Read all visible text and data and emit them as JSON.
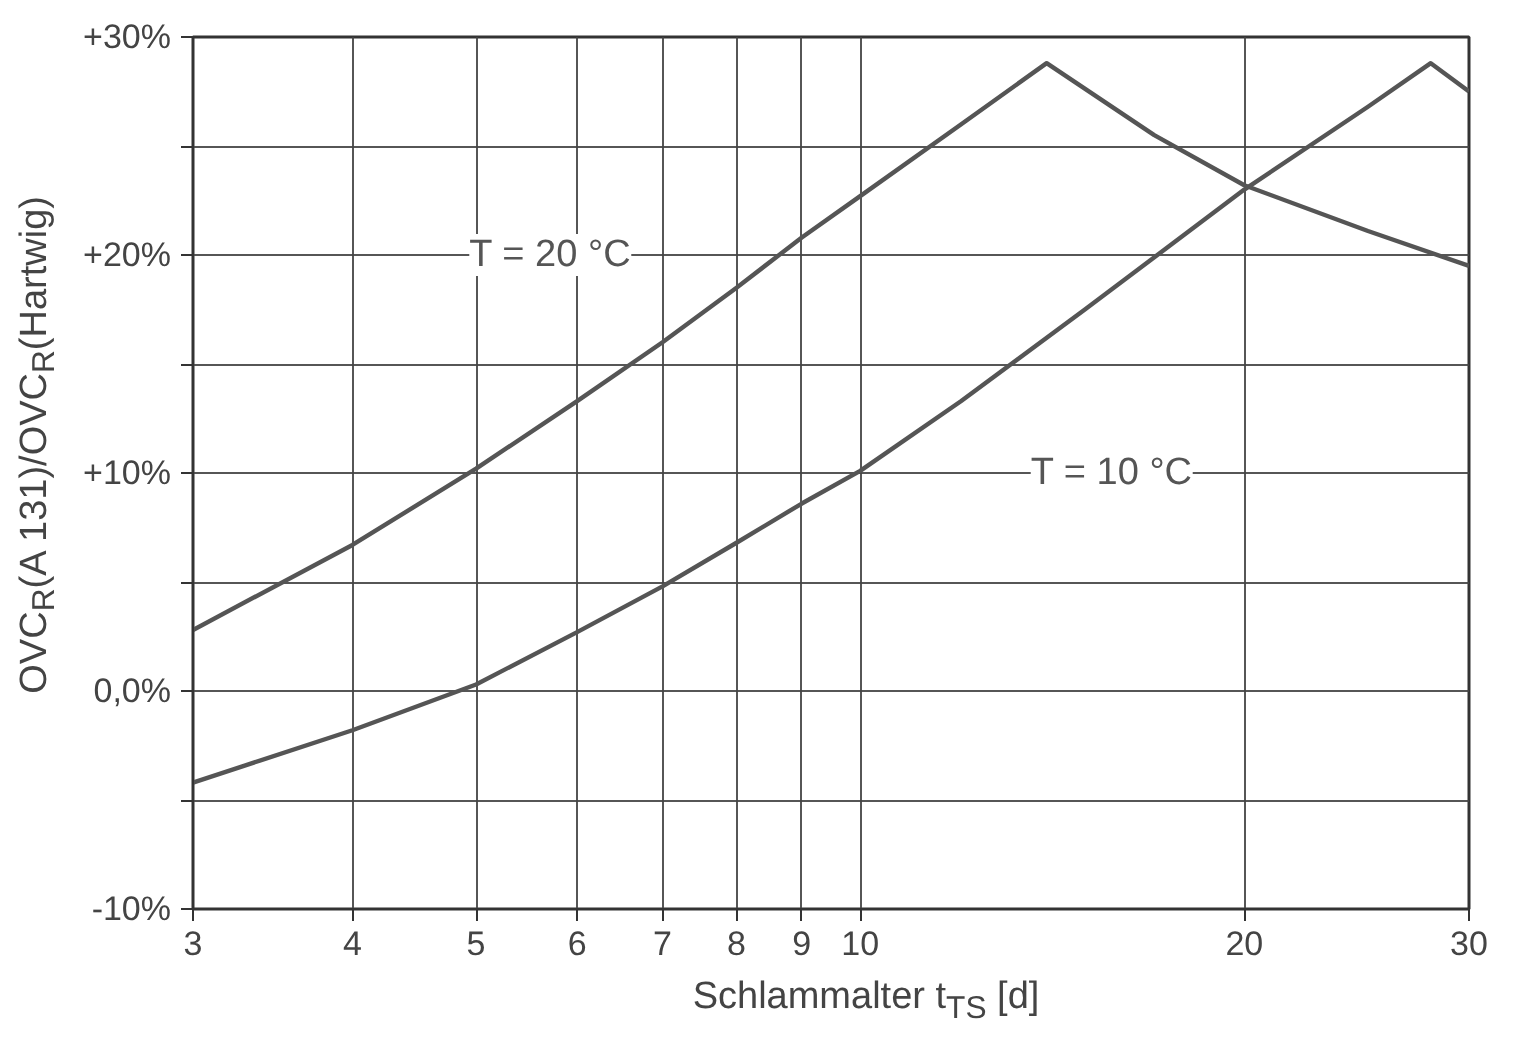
{
  "chart_data": {
    "type": "line",
    "xlabel": "Schlammalter t$_{TS}$ [d]",
    "ylabel": "OVC$_{R}$(A 131)/OVC$_{R}$(Hartwig)",
    "log": "x",
    "xlim": [
      3,
      30
    ],
    "xticks": [
      3,
      4,
      5,
      6,
      7,
      8,
      9,
      10,
      20,
      30
    ],
    "ylim": [
      -10,
      30
    ],
    "yticks": [
      {
        "value": -10,
        "label": "-10%"
      },
      {
        "value": -5,
        "label": null
      },
      {
        "value": 0,
        "label": "0,0%"
      },
      {
        "value": 5,
        "label": null
      },
      {
        "value": 10,
        "label": "+10%"
      },
      {
        "value": 15,
        "label": null
      },
      {
        "value": 20,
        "label": "+20%"
      },
      {
        "value": 25,
        "label": null
      },
      {
        "value": 30,
        "label": "+30%"
      }
    ],
    "grid": true,
    "legend": false,
    "marker": "none",
    "line_style": "solid",
    "series": [
      {
        "name": "T = 20 °C",
        "color": "#555555",
        "x": [
          3,
          4,
          5,
          6,
          7,
          8,
          9,
          10,
          12,
          14,
          17,
          20,
          25,
          30
        ],
        "values": [
          2.8,
          6.7,
          10.2,
          13.3,
          16,
          18.5,
          20.8,
          22.7,
          26,
          28.8,
          25.5,
          23.2,
          21.1,
          19.5
        ]
      },
      {
        "name": "T = 10 °C",
        "color": "#555555",
        "x": [
          3,
          4,
          5,
          6,
          7,
          8,
          9,
          10,
          12,
          15,
          20,
          25,
          28,
          30
        ],
        "values": [
          -4.2,
          -1.8,
          0.3,
          2.7,
          4.8,
          6.8,
          8.6,
          10.1,
          13.3,
          17.5,
          23,
          26.8,
          28.8,
          27.5
        ]
      }
    ]
  }
}
